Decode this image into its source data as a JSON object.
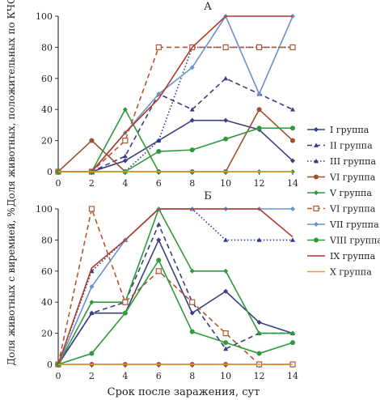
{
  "chart_data": [
    {
      "type": "line",
      "panel": "А",
      "ylabel": "Доля животных, положительных по КЧС, %",
      "xlabel": "",
      "x": [
        0,
        2,
        4,
        6,
        8,
        10,
        12,
        14
      ],
      "ylim": [
        0,
        100
      ],
      "yticks": [
        0,
        20,
        40,
        60,
        80,
        100
      ],
      "series": [
        {
          "name": "I группа",
          "color": "#3a3f80",
          "dash": "",
          "marker": "diamond",
          "x": [
            0,
            2,
            4,
            6,
            8,
            10,
            12,
            14
          ],
          "y": [
            0,
            0,
            7,
            20,
            33,
            33,
            27,
            7
          ]
        },
        {
          "name": "II группа",
          "color": "#3a3f80",
          "dash": "6,4",
          "marker": "triangle",
          "x": [
            0,
            2,
            4,
            6,
            8,
            10,
            12,
            14
          ],
          "y": [
            0,
            0,
            10,
            50,
            40,
            60,
            50,
            40
          ]
        },
        {
          "name": "III группа",
          "color": "#2b3a8a",
          "dash": "1.5,2.5",
          "marker": "triangle",
          "x": [
            0,
            2,
            4,
            6,
            8,
            10,
            12,
            14
          ],
          "y": [
            0,
            0,
            0,
            20,
            80,
            80,
            80,
            80
          ]
        },
        {
          "name": "VI группа",
          "color": "#a0502c",
          "dash": "",
          "marker": "circle",
          "x": [
            0,
            2,
            4,
            6,
            8,
            10,
            12,
            14
          ],
          "y": [
            0,
            20,
            0,
            0,
            0,
            0,
            40,
            20
          ]
        },
        {
          "name": "V группа",
          "color": "#2f9a3a",
          "dash": "",
          "marker": "diamond",
          "x": [
            0,
            2,
            4,
            6,
            8,
            10,
            12,
            14
          ],
          "y": [
            0,
            0,
            40,
            0,
            0,
            0,
            0,
            0
          ]
        },
        {
          "name": "VI группа",
          "color": "#b5552f",
          "dash": "6,4",
          "marker": "square-open",
          "x": [
            0,
            2,
            4,
            6,
            8,
            10,
            12,
            14
          ],
          "y": [
            0,
            0,
            20,
            80,
            80,
            80,
            80,
            80
          ]
        },
        {
          "name": "VII группа",
          "color": "#6b93c8",
          "dash": "",
          "marker": "diamond",
          "x": [
            0,
            2,
            4,
            6,
            8,
            10,
            12,
            14
          ],
          "y": [
            0,
            0,
            25,
            50,
            67,
            100,
            50,
            100
          ]
        },
        {
          "name": "VIII группа",
          "color": "#2f9a3a",
          "dash": "",
          "marker": "circle",
          "x": [
            0,
            2,
            4,
            6,
            8,
            10,
            12,
            14
          ],
          "y": [
            0,
            0,
            0,
            13,
            14,
            21,
            28,
            28
          ]
        },
        {
          "name": "IX группа",
          "color": "#b03a2a",
          "dash": "",
          "marker": "none",
          "x": [
            0,
            2,
            4,
            6,
            8,
            10,
            12,
            14
          ],
          "y": [
            0,
            0,
            25,
            47,
            80,
            100,
            100,
            100
          ]
        },
        {
          "name": "X группа",
          "color": "#e0a030",
          "dash": "",
          "marker": "none",
          "x": [
            0,
            2,
            4,
            6,
            8,
            10,
            12,
            14
          ],
          "y": [
            0,
            0,
            0,
            0,
            0,
            0,
            0,
            0
          ]
        }
      ]
    },
    {
      "type": "line",
      "panel": "Б",
      "ylabel": "Доля животных с виремией, %",
      "xlabel": "Срок после заражения, сут",
      "x": [
        0,
        2,
        4,
        6,
        8,
        10,
        12,
        14
      ],
      "ylim": [
        0,
        100
      ],
      "yticks": [
        0,
        20,
        40,
        60,
        80,
        100
      ],
      "series": [
        {
          "name": "I группа",
          "color": "#3a3f80",
          "dash": "",
          "marker": "diamond",
          "x": [
            0,
            2,
            4,
            6,
            8,
            10,
            12,
            14
          ],
          "y": [
            0,
            33,
            33,
            80,
            33,
            47,
            27,
            20
          ]
        },
        {
          "name": "II группа",
          "color": "#3a3f80",
          "dash": "6,4",
          "marker": "triangle",
          "x": [
            0,
            2,
            4,
            6,
            8,
            10,
            12,
            14
          ],
          "y": [
            0,
            33,
            40,
            90,
            40,
            10,
            20,
            20
          ]
        },
        {
          "name": "III группа",
          "color": "#2b3a8a",
          "dash": "1.5,2.5",
          "marker": "triangle",
          "x": [
            0,
            2,
            4,
            6,
            8,
            10,
            12,
            14
          ],
          "y": [
            0,
            60,
            80,
            100,
            100,
            80,
            80,
            80
          ]
        },
        {
          "name": "VI группа",
          "color": "#a0502c",
          "dash": "",
          "marker": "circle",
          "x": [
            0,
            2,
            4,
            6,
            8,
            10,
            12,
            14
          ],
          "y": [
            0,
            0,
            0,
            0,
            0,
            0,
            0,
            0
          ]
        },
        {
          "name": "V группа",
          "color": "#2f9a3a",
          "dash": "",
          "marker": "diamond",
          "x": [
            0,
            2,
            4,
            6,
            8,
            10,
            12,
            14
          ],
          "y": [
            0,
            40,
            40,
            100,
            60,
            60,
            20,
            20
          ]
        },
        {
          "name": "VI группа",
          "color": "#b5552f",
          "dash": "6,4",
          "marker": "square-open",
          "x": [
            0,
            2,
            4,
            6,
            8,
            10,
            12,
            14
          ],
          "y": [
            0,
            100,
            40,
            60,
            40,
            20,
            0,
            0
          ]
        },
        {
          "name": "VII группа",
          "color": "#6b93c8",
          "dash": "",
          "marker": "diamond",
          "x": [
            0,
            2,
            4,
            6,
            8,
            10,
            12,
            14
          ],
          "y": [
            0,
            50,
            80,
            100,
            100,
            100,
            100,
            100
          ]
        },
        {
          "name": "VIII группа",
          "color": "#2f9a3a",
          "dash": "",
          "marker": "circle",
          "x": [
            0,
            2,
            4,
            6,
            8,
            10,
            12,
            14
          ],
          "y": [
            0,
            7,
            33,
            67,
            21,
            14,
            7,
            14
          ]
        },
        {
          "name": "IX группа",
          "color": "#b03a2a",
          "dash": "",
          "marker": "none",
          "x": [
            0,
            2,
            4,
            6,
            8,
            10,
            12,
            14
          ],
          "y": [
            0,
            62,
            80,
            100,
            100,
            100,
            100,
            82
          ]
        },
        {
          "name": "X группа",
          "color": "#e0a030",
          "dash": "",
          "marker": "none",
          "x": [
            0,
            2,
            4,
            6,
            8,
            10,
            12,
            14
          ],
          "y": [
            0,
            0,
            0,
            0,
            0,
            0,
            0,
            0
          ]
        }
      ]
    }
  ],
  "legend_position": "right"
}
